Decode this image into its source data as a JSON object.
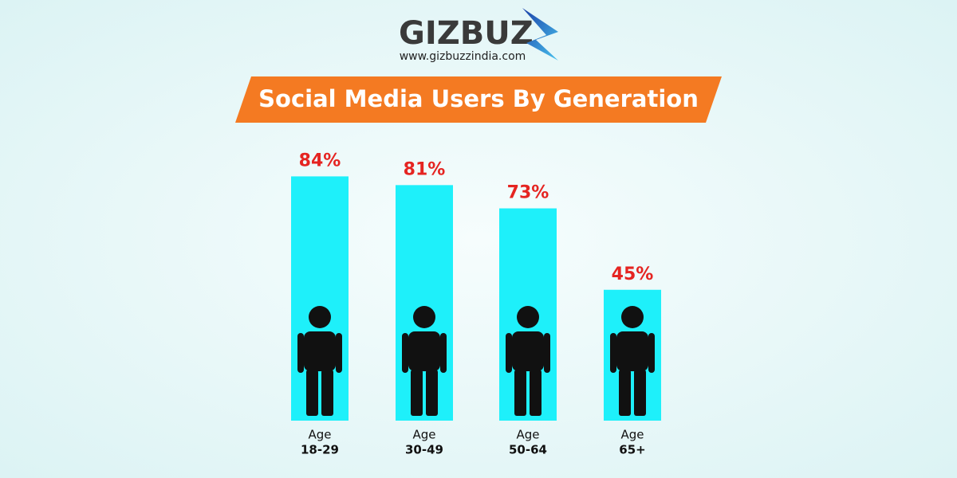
{
  "header": {
    "logo": "GIZBUZ",
    "website": "www.gizbuzzindia.com"
  },
  "chart_data": {
    "type": "bar",
    "title": "Social Media Users By Generation",
    "category_caption": "Age",
    "categories": [
      "18-29",
      "30-49",
      "50-64",
      "65+"
    ],
    "values": [
      84,
      81,
      73,
      45
    ],
    "value_labels": [
      "84%",
      "81%",
      "73%",
      "45%"
    ],
    "color": "#1ef0fa",
    "value_label_color": "#e52421"
  }
}
